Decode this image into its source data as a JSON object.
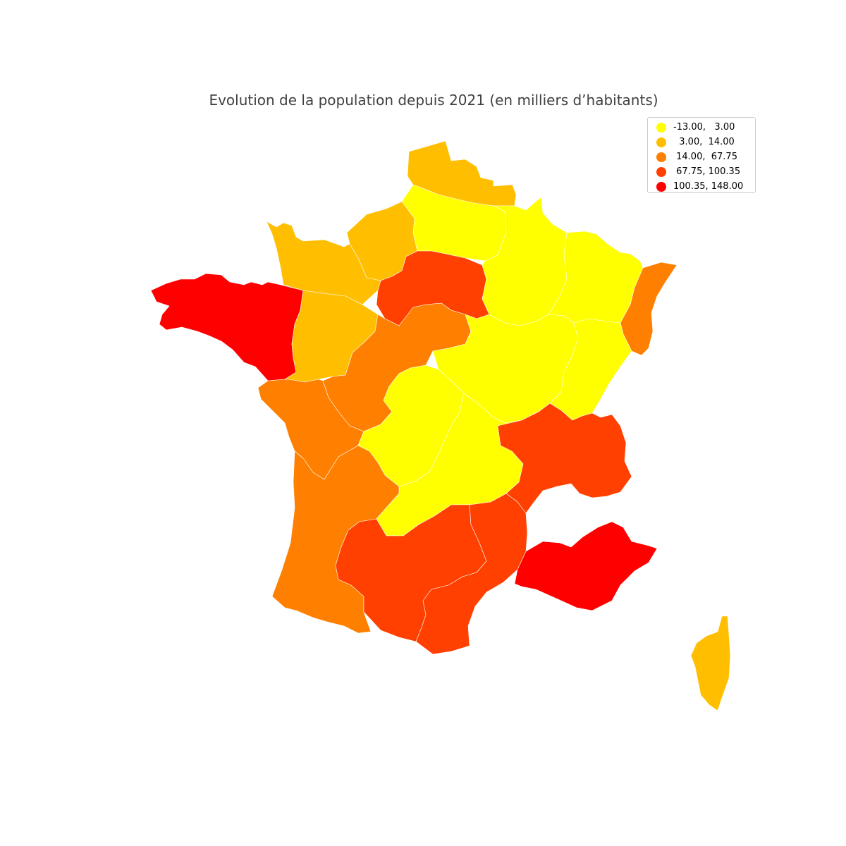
{
  "title": "Evolution de la population depuis 2021 (en milliers d’habitants)",
  "legend": {
    "classes": [
      {
        "label": "-13.00,   3.00",
        "color": "#ffff00"
      },
      {
        "label": "  3.00,  14.00",
        "color": "#ffbf00"
      },
      {
        "label": " 14.00,  67.75",
        "color": "#ff8000"
      },
      {
        "label": " 67.75, 100.35",
        "color": "#ff4000"
      },
      {
        "label": "100.35, 148.00",
        "color": "#ff0000"
      }
    ]
  },
  "regions": [
    {
      "name": "nord-pas-de-calais",
      "class": 1
    },
    {
      "name": "picardie",
      "class": 0
    },
    {
      "name": "haute-normandie",
      "class": 1
    },
    {
      "name": "basse-normandie",
      "class": 1
    },
    {
      "name": "bretagne",
      "class": 4
    },
    {
      "name": "pays-de-la-loire",
      "class": 1
    },
    {
      "name": "ile-de-france",
      "class": 3
    },
    {
      "name": "centre",
      "class": 2
    },
    {
      "name": "champagne-ardenne",
      "class": 0
    },
    {
      "name": "lorraine",
      "class": 0
    },
    {
      "name": "alsace",
      "class": 2
    },
    {
      "name": "bourgogne",
      "class": 0
    },
    {
      "name": "franche-comte",
      "class": 0
    },
    {
      "name": "poitou-charentes",
      "class": 2
    },
    {
      "name": "limousin",
      "class": 0
    },
    {
      "name": "auvergne",
      "class": 0
    },
    {
      "name": "rhone-alpes",
      "class": 3
    },
    {
      "name": "aquitaine",
      "class": 2
    },
    {
      "name": "midi-pyrenees",
      "class": 3
    },
    {
      "name": "languedoc-roussillon",
      "class": 3
    },
    {
      "name": "provence-alpes-cote-d-azur",
      "class": 4
    },
    {
      "name": "corse",
      "class": 1
    }
  ]
}
